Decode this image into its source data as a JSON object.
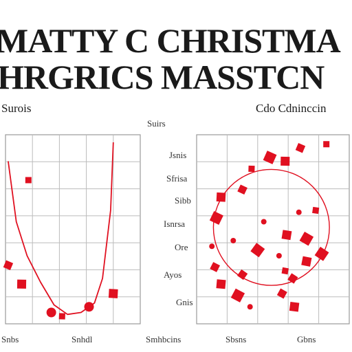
{
  "title": {
    "line1": "MATTY C CHRISTMA",
    "line2": "HRGRICS MASSTCN"
  },
  "subtitles": {
    "left": "Surois",
    "right": "Cdo Cdninccin"
  },
  "center_header": "Suirs",
  "tick_labels": [
    "Jsnis",
    "Sfrisa",
    "Sibb",
    "Isnrsa",
    "Ore",
    "Ayos",
    "Gnis"
  ],
  "bottom_labels": [
    "Snbs",
    "Snhdl",
    "Smhbcins",
    "Sbsns",
    "Gbns"
  ],
  "accent_color": "#e01020",
  "chart_data": [
    {
      "type": "line",
      "title": "Surois",
      "xlim": [
        0,
        10
      ],
      "ylim": [
        0,
        10
      ],
      "series": [
        {
          "x": [
            0.2,
            0.8,
            1.6,
            2.6,
            3.6,
            4.6,
            5.6,
            6.6,
            7.2,
            7.8,
            8.0
          ],
          "y": [
            8.6,
            5.4,
            3.6,
            2.2,
            1.0,
            0.5,
            0.6,
            1.1,
            2.4,
            6.0,
            9.6
          ]
        }
      ],
      "markers": [
        {
          "x": 1.7,
          "y": 7.6,
          "shape": "square"
        },
        {
          "x": 0.2,
          "y": 3.1,
          "shape": "square"
        },
        {
          "x": 1.2,
          "y": 2.1,
          "shape": "square"
        },
        {
          "x": 3.4,
          "y": 0.6,
          "shape": "circle"
        },
        {
          "x": 4.2,
          "y": 0.4,
          "shape": "square"
        },
        {
          "x": 6.2,
          "y": 0.9,
          "shape": "circle"
        },
        {
          "x": 8.0,
          "y": 1.6,
          "shape": "square"
        }
      ]
    },
    {
      "type": "scatter",
      "title": "Cdo Cdninccin",
      "xlim": [
        0,
        10
      ],
      "ylim": [
        0,
        10
      ],
      "ring": {
        "cx": 4.9,
        "cy": 5.1,
        "r": 3.8
      },
      "points": [
        {
          "x": 8.5,
          "y": 9.5,
          "shape": "square"
        },
        {
          "x": 6.8,
          "y": 9.3,
          "shape": "square"
        },
        {
          "x": 5.8,
          "y": 8.6,
          "shape": "square"
        },
        {
          "x": 4.8,
          "y": 8.8,
          "shape": "square"
        },
        {
          "x": 3.6,
          "y": 8.2,
          "shape": "square"
        },
        {
          "x": 3.0,
          "y": 7.1,
          "shape": "square"
        },
        {
          "x": 1.6,
          "y": 6.7,
          "shape": "square"
        },
        {
          "x": 1.3,
          "y": 5.6,
          "shape": "square"
        },
        {
          "x": 1.0,
          "y": 4.1,
          "shape": "dot"
        },
        {
          "x": 1.2,
          "y": 3.0,
          "shape": "square"
        },
        {
          "x": 1.6,
          "y": 2.1,
          "shape": "square"
        },
        {
          "x": 2.7,
          "y": 1.5,
          "shape": "square"
        },
        {
          "x": 3.5,
          "y": 0.9,
          "shape": "dot"
        },
        {
          "x": 5.6,
          "y": 1.6,
          "shape": "square"
        },
        {
          "x": 6.4,
          "y": 0.9,
          "shape": "square"
        },
        {
          "x": 7.2,
          "y": 4.5,
          "shape": "square"
        },
        {
          "x": 7.8,
          "y": 6.0,
          "shape": "square"
        },
        {
          "x": 6.7,
          "y": 5.9,
          "shape": "dot"
        },
        {
          "x": 5.9,
          "y": 4.7,
          "shape": "square"
        },
        {
          "x": 5.4,
          "y": 3.6,
          "shape": "dot"
        },
        {
          "x": 5.8,
          "y": 2.8,
          "shape": "square"
        },
        {
          "x": 6.3,
          "y": 2.4,
          "shape": "square"
        },
        {
          "x": 7.2,
          "y": 3.3,
          "shape": "square"
        },
        {
          "x": 8.2,
          "y": 3.7,
          "shape": "square"
        },
        {
          "x": 4.4,
          "y": 5.4,
          "shape": "dot"
        },
        {
          "x": 3.0,
          "y": 2.6,
          "shape": "square"
        },
        {
          "x": 2.4,
          "y": 4.4,
          "shape": "dot"
        },
        {
          "x": 4.0,
          "y": 3.9,
          "shape": "square"
        }
      ]
    }
  ]
}
